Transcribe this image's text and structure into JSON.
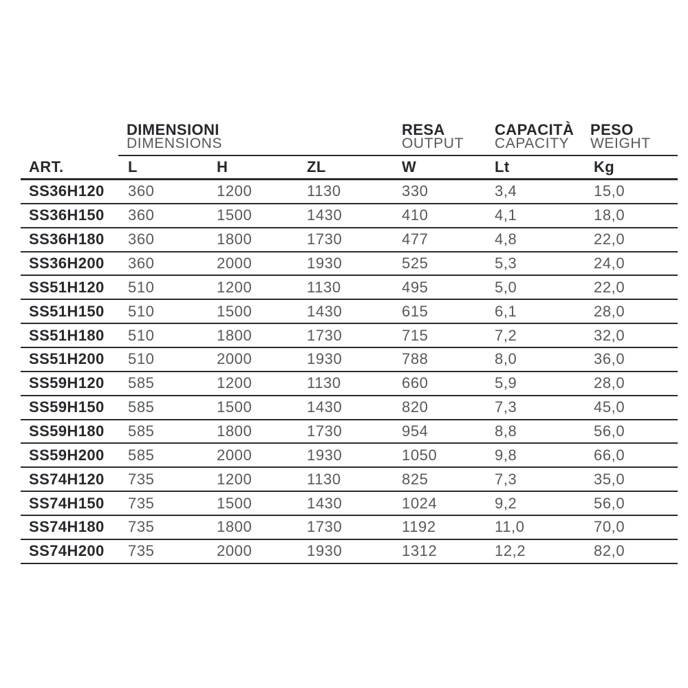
{
  "table": {
    "group_headers": [
      {
        "it": "DIMENSIONI",
        "en": "DIMENSIONS"
      },
      {
        "it": "RESA",
        "en": "OUTPUT"
      },
      {
        "it": "CAPACITÀ",
        "en": "CAPACITY"
      },
      {
        "it": "PESO",
        "en": "WEIGHT"
      }
    ],
    "columns": [
      "ART.",
      "L",
      "H",
      "ZL",
      "W",
      "Lt",
      "Kg"
    ],
    "rows": [
      [
        "SS36H120",
        "360",
        "1200",
        "1130",
        "330",
        "3,4",
        "15,0"
      ],
      [
        "SS36H150",
        "360",
        "1500",
        "1430",
        "410",
        "4,1",
        "18,0"
      ],
      [
        "SS36H180",
        "360",
        "1800",
        "1730",
        "477",
        "4,8",
        "22,0"
      ],
      [
        "SS36H200",
        "360",
        "2000",
        "1930",
        "525",
        "5,3",
        "24,0"
      ],
      [
        "SS51H120",
        "510",
        "1200",
        "1130",
        "495",
        "5,0",
        "22,0"
      ],
      [
        "SS51H150",
        "510",
        "1500",
        "1430",
        "615",
        "6,1",
        "28,0"
      ],
      [
        "SS51H180",
        "510",
        "1800",
        "1730",
        "715",
        "7,2",
        "32,0"
      ],
      [
        "SS51H200",
        "510",
        "2000",
        "1930",
        "788",
        "8,0",
        "36,0"
      ],
      [
        "SS59H120",
        "585",
        "1200",
        "1130",
        "660",
        "5,9",
        "28,0"
      ],
      [
        "SS59H150",
        "585",
        "1500",
        "1430",
        "820",
        "7,3",
        "45,0"
      ],
      [
        "SS59H180",
        "585",
        "1800",
        "1730",
        "954",
        "8,8",
        "56,0"
      ],
      [
        "SS59H200",
        "585",
        "2000",
        "1930",
        "1050",
        "9,8",
        "66,0"
      ],
      [
        "SS74H120",
        "735",
        "1200",
        "1130",
        "825",
        "7,3",
        "35,0"
      ],
      [
        "SS74H150",
        "735",
        "1500",
        "1430",
        "1024",
        "9,2",
        "56,0"
      ],
      [
        "SS74H180",
        "735",
        "1800",
        "1730",
        "1192",
        "11,0",
        "70,0"
      ],
      [
        "SS74H200",
        "735",
        "2000",
        "1930",
        "1312",
        "12,2",
        "82,0"
      ]
    ]
  },
  "colors": {
    "text_dark": "#26282b",
    "text_gray": "#56585b",
    "rule": "#2a2b2d",
    "background": "#ffffff"
  }
}
